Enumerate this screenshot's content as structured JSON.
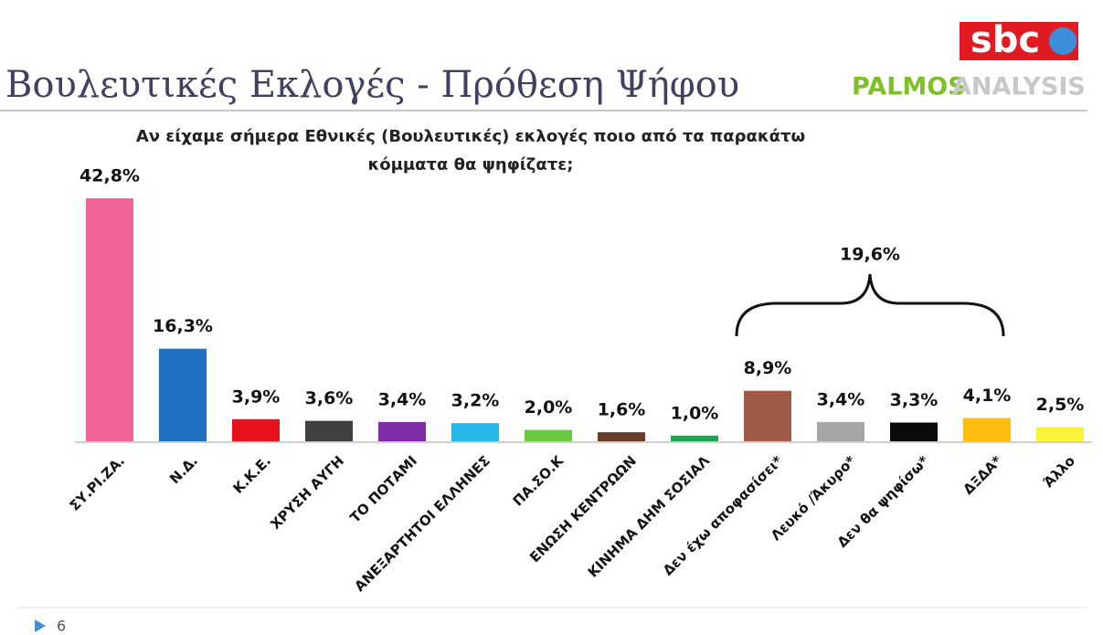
{
  "chart_data": {
    "type": "bar",
    "title": "Βουλευτικές Εκλογές - Πρόθεση Ψήφου",
    "subtitle": [
      "Αν είχαμε σήμερα Εθνικές (Βουλευτικές) εκλογές ποιο από τα παρακάτω",
      "κόμματα θα ψηφίζατε;"
    ],
    "logos": [
      "sbc",
      "PALMOS",
      "ANALYSIS"
    ],
    "page_number": "6",
    "annotation": "19,6%",
    "categories": [
      "ΣΥ.ΡΙ.ΖΑ.",
      "Ν.Δ.",
      "Κ.Κ.Ε.",
      "ΧΡΥΣΗ ΑΥΓΗ",
      "ΤΟ ΠΟΤΑΜΙ",
      "ΑΝΕΞΑΡΤΗΤΟΙ ΕΛΛΗΝΕΣ",
      "ΠΑ.ΣΟ.Κ",
      "ΕΝΩΣΗ ΚΕΝΤΡΩΩΝ",
      "ΚΙΝΗΜΑ ΔΗΜ ΣΟΣΙΑΛ",
      "Δεν έχω αποφασίσει*",
      "Λευκό /Άκυρο*",
      "Δεν θα ψηφίσω*",
      "ΔΞΔΑ*",
      "Άλλο"
    ],
    "values": [
      42.8,
      16.3,
      3.9,
      3.6,
      3.4,
      3.2,
      2.0,
      1.6,
      1.0,
      8.9,
      3.4,
      3.3,
      4.1,
      2.5
    ],
    "value_labels": [
      "42,8%",
      "16,3%",
      "3,9%",
      "3,6%",
      "3,4%",
      "3,2%",
      "2,0%",
      "1,6%",
      "1,0%",
      "8,9%",
      "3,4%",
      "3,3%",
      "4,1%",
      "2,5%"
    ],
    "colors": [
      "#f0649a",
      "#1f6fc2",
      "#e8101c",
      "#404040",
      "#7e2fa6",
      "#27b6ea",
      "#6cc942",
      "#6b3b2c",
      "#1aa552",
      "#a05a45",
      "#a6a6a6",
      "#0a0a0a",
      "#fdbd10",
      "#fbf33a"
    ]
  }
}
